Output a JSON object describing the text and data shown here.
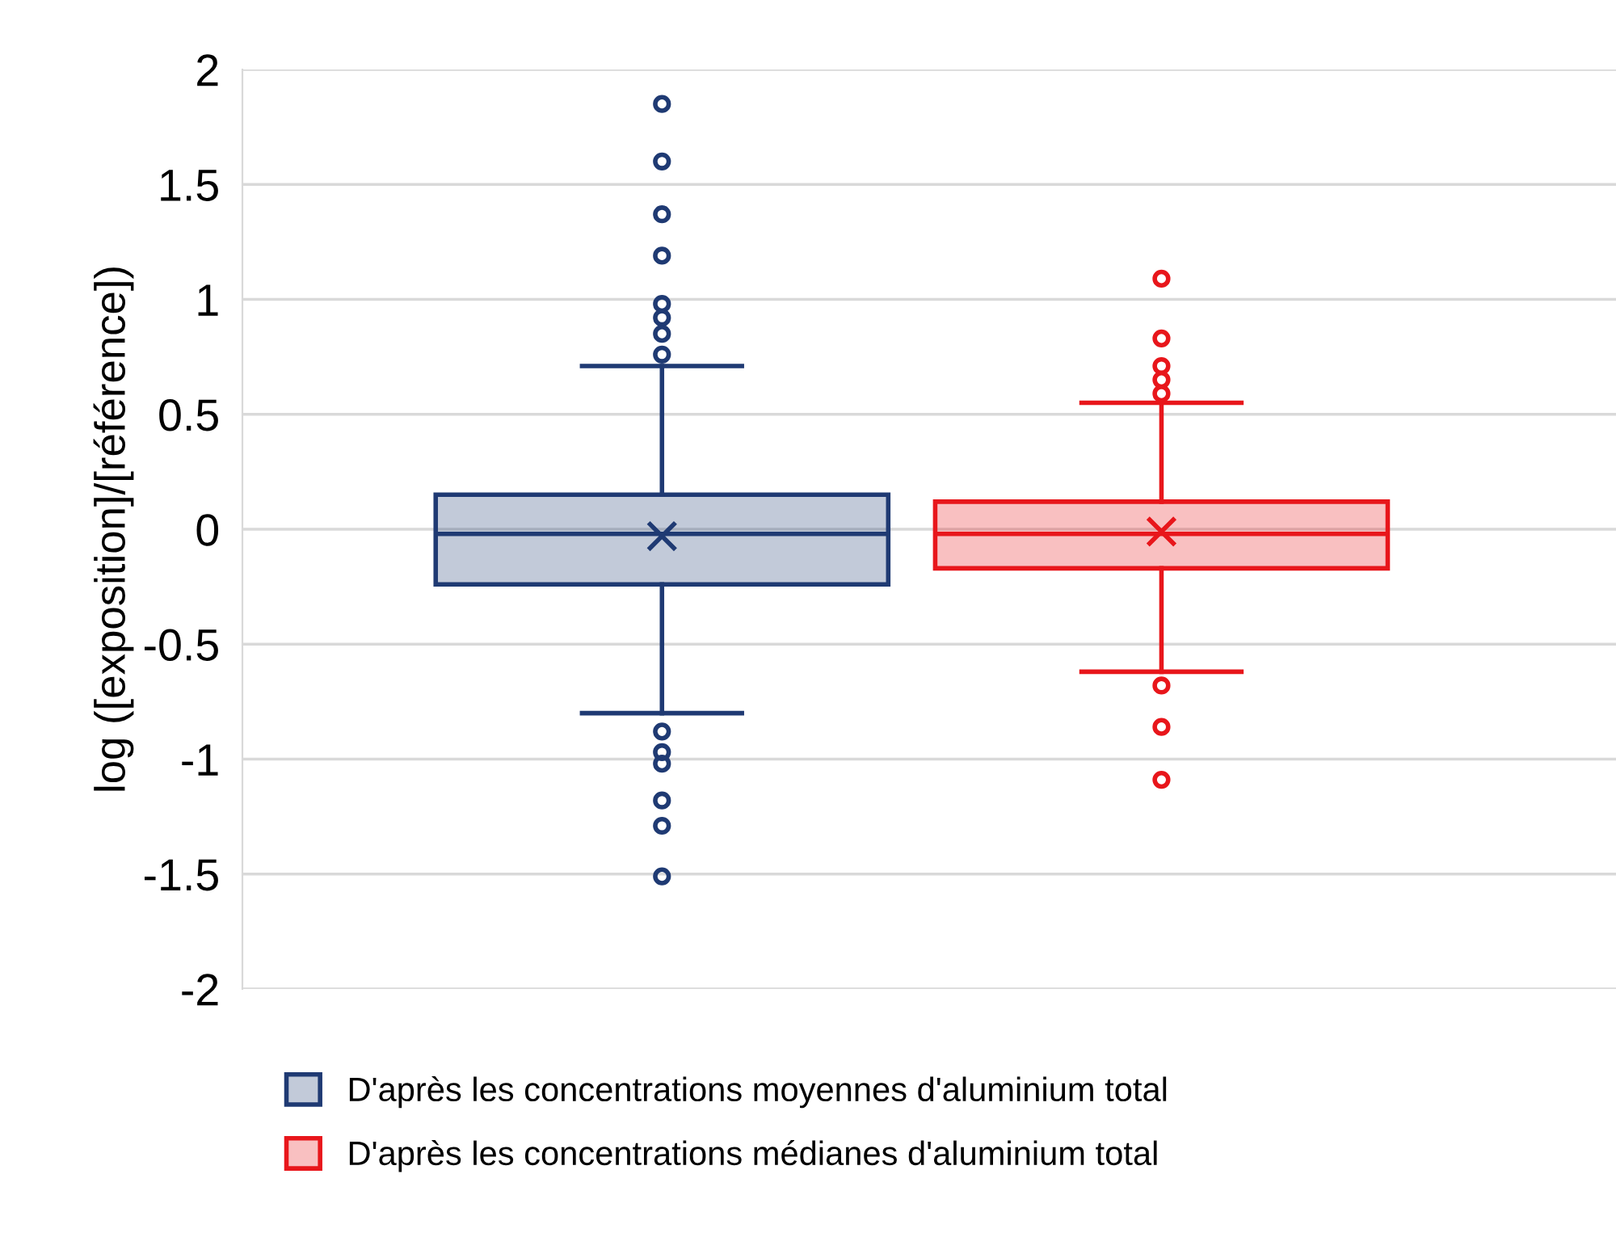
{
  "chart_data": {
    "type": "box",
    "ylabel": "log ([exposition]/[référence])",
    "categories": [
      null,
      null
    ],
    "ylim": [
      -2,
      2
    ],
    "yticks": [
      -2,
      -1.5,
      -1,
      -0.5,
      0,
      0.5,
      1,
      1.5,
      2
    ],
    "grid": "y",
    "legend": "bottom",
    "marker": "circle",
    "series": [
      {
        "name": "D'après les concentrations moyennes d'aluminium total",
        "color": "#1f3a73",
        "boxes": [
          {
            "low": -0.8,
            "q1": -0.24,
            "median": -0.02,
            "q3": 0.15,
            "high": 0.71,
            "mean": -0.03,
            "outliers": [
              1.85,
              1.6,
              1.37,
              1.19,
              0.98,
              0.92,
              0.85,
              0.76,
              -0.88,
              -0.97,
              -1.02,
              -1.18,
              -1.29,
              -1.51
            ]
          },
          null
        ]
      },
      {
        "name": "D'après les concentrations médianes d'aluminium total",
        "color": "#e8161b",
        "boxes": [
          null,
          {
            "low": -0.62,
            "q1": -0.17,
            "median": -0.02,
            "q3": 0.12,
            "high": 0.55,
            "mean": -0.01,
            "outliers": [
              1.09,
              0.83,
              0.71,
              0.65,
              0.59,
              -0.68,
              -0.86,
              -1.09
            ]
          }
        ]
      }
    ]
  }
}
